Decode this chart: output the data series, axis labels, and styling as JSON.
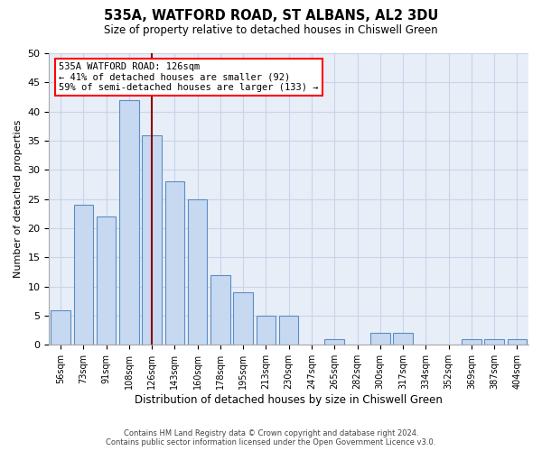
{
  "title": "535A, WATFORD ROAD, ST ALBANS, AL2 3DU",
  "subtitle": "Size of property relative to detached houses in Chiswell Green",
  "xlabel": "Distribution of detached houses by size in Chiswell Green",
  "ylabel": "Number of detached properties",
  "categories": [
    "56sqm",
    "73sqm",
    "91sqm",
    "108sqm",
    "126sqm",
    "143sqm",
    "160sqm",
    "178sqm",
    "195sqm",
    "213sqm",
    "230sqm",
    "247sqm",
    "265sqm",
    "282sqm",
    "300sqm",
    "317sqm",
    "334sqm",
    "352sqm",
    "369sqm",
    "387sqm",
    "404sqm"
  ],
  "values": [
    6,
    24,
    22,
    42,
    36,
    28,
    25,
    12,
    9,
    5,
    5,
    0,
    1,
    0,
    2,
    2,
    0,
    0,
    1,
    1,
    1
  ],
  "bar_color": "#c6d9f0",
  "bar_edge_color": "#5b8ec4",
  "marker_index": 4,
  "marker_label": "535A WATFORD ROAD: 126sqm",
  "annotation_line1": "← 41% of detached houses are smaller (92)",
  "annotation_line2": "59% of semi-detached houses are larger (133) →",
  "marker_color": "#8b0000",
  "ylim": [
    0,
    50
  ],
  "yticks": [
    0,
    5,
    10,
    15,
    20,
    25,
    30,
    35,
    40,
    45,
    50
  ],
  "grid_color": "#c8d4e8",
  "background_color": "#e8eef8",
  "footer_line1": "Contains HM Land Registry data © Crown copyright and database right 2024.",
  "footer_line2": "Contains public sector information licensed under the Open Government Licence v3.0."
}
